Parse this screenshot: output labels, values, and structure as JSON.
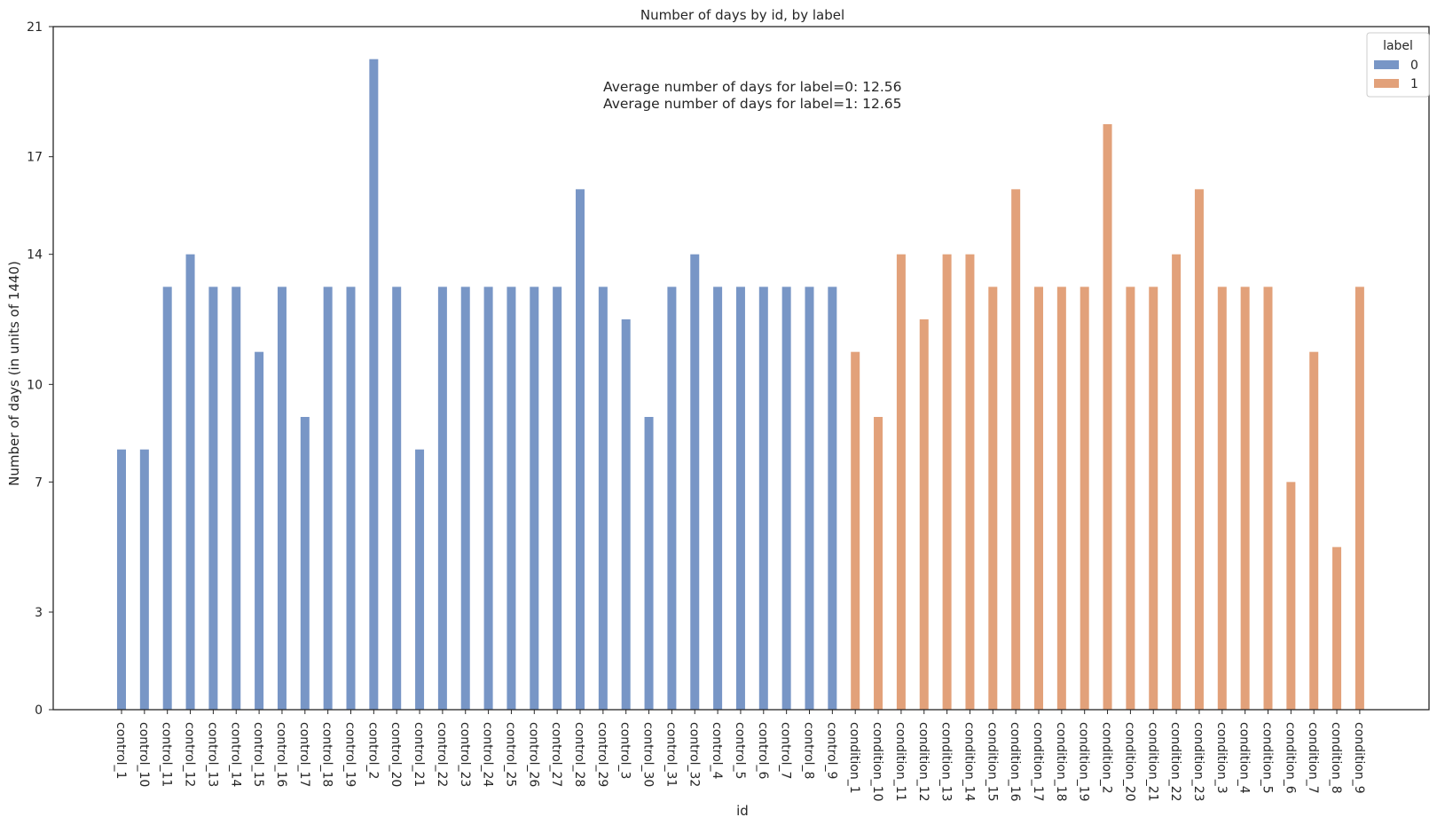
{
  "chart_data": {
    "type": "bar",
    "title": "Number of days by id, by label",
    "xlabel": "id",
    "ylabel": "Number of days (in units of 1440)",
    "ylim": [
      0,
      21
    ],
    "yticks": [
      0,
      3,
      7,
      10,
      14,
      17,
      21
    ],
    "grid": false,
    "annotations": [
      "Average number of days for label=0: 12.56",
      "Average number of days for label=1: 12.65"
    ],
    "legend": {
      "title": "label",
      "placement": "top-right",
      "entries": [
        {
          "label": "0",
          "color": "#7896c6"
        },
        {
          "label": "1",
          "color": "#e2a17a"
        }
      ]
    },
    "series": [
      {
        "name": "0",
        "color": "#7896c6",
        "categories": [
          "control_1",
          "control_10",
          "control_11",
          "control_12",
          "control_13",
          "control_14",
          "control_15",
          "control_16",
          "control_17",
          "control_18",
          "control_19",
          "control_2",
          "control_20",
          "control_21",
          "control_22",
          "control_23",
          "control_24",
          "control_25",
          "control_26",
          "control_27",
          "control_28",
          "control_29",
          "control_3",
          "control_30",
          "control_31",
          "control_32",
          "control_4",
          "control_5",
          "control_6",
          "control_7",
          "control_8",
          "control_9"
        ],
        "values": [
          8,
          8,
          13,
          14,
          13,
          13,
          11,
          13,
          9,
          13,
          13,
          20,
          13,
          8,
          13,
          13,
          13,
          13,
          13,
          13,
          16,
          13,
          12,
          9,
          13,
          14,
          13,
          13,
          13,
          13,
          13,
          13
        ]
      },
      {
        "name": "1",
        "color": "#e2a17a",
        "categories": [
          "condition_1",
          "condition_10",
          "condition_11",
          "condition_12",
          "condition_13",
          "condition_14",
          "condition_15",
          "condition_16",
          "condition_17",
          "condition_18",
          "condition_19",
          "condition_2",
          "condition_20",
          "condition_21",
          "condition_22",
          "condition_23",
          "condition_3",
          "condition_4",
          "condition_5",
          "condition_6",
          "condition_7",
          "condition_8",
          "condition_9"
        ],
        "values": [
          11,
          9,
          14,
          12,
          14,
          14,
          13,
          16,
          13,
          13,
          13,
          18,
          13,
          13,
          14,
          16,
          13,
          13,
          13,
          7,
          11,
          5,
          13
        ]
      }
    ]
  }
}
